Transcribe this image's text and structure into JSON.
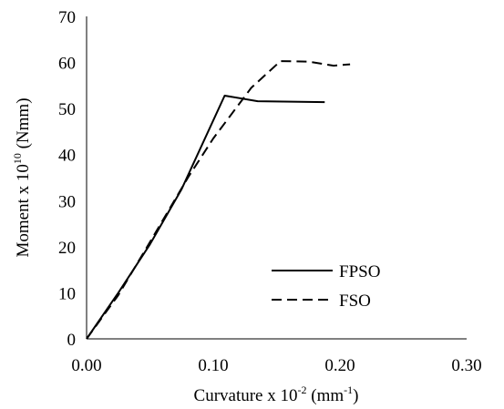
{
  "chart_data": {
    "type": "line",
    "title": "",
    "xlabel": {
      "prefix": "Curvature x 10",
      "prefix_sup": "-2",
      "mid": " (mm",
      "mid_sup": "-1",
      "suffix": ")"
    },
    "ylabel": {
      "prefix": "Moment x 10",
      "sup": "10",
      "suffix": " (Nmm)"
    },
    "xlim": [
      0,
      0.3
    ],
    "ylim": [
      0,
      70
    ],
    "x_ticks": [
      "0.00",
      "0.10",
      "0.20",
      "0.30"
    ],
    "y_ticks": [
      "0",
      "10",
      "20",
      "30",
      "40",
      "50",
      "60",
      "70"
    ],
    "grid": false,
    "legend_position": "lower-right",
    "series": [
      {
        "name": "FPSO",
        "line_style": "solid",
        "color": "#000000",
        "points": [
          [
            0.0,
            0.0
          ],
          [
            0.025,
            10.0
          ],
          [
            0.05,
            20.5
          ],
          [
            0.075,
            32.5
          ],
          [
            0.109,
            52.8
          ],
          [
            0.135,
            51.6
          ],
          [
            0.188,
            51.4
          ]
        ]
      },
      {
        "name": "FSO",
        "line_style": "dashed",
        "color": "#000000",
        "points": [
          [
            0.0,
            0.0
          ],
          [
            0.025,
            9.5
          ],
          [
            0.05,
            21.0
          ],
          [
            0.08,
            35.0
          ],
          [
            0.1,
            43.5
          ],
          [
            0.13,
            54.5
          ],
          [
            0.153,
            60.3
          ],
          [
            0.175,
            60.2
          ],
          [
            0.195,
            59.3
          ],
          [
            0.208,
            59.6
          ]
        ]
      }
    ]
  }
}
